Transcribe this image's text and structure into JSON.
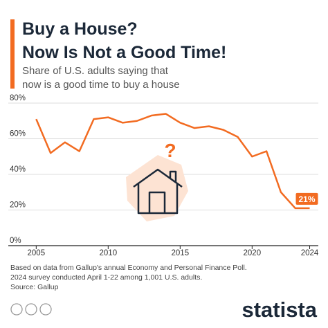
{
  "chart_data": {
    "type": "line",
    "title": [
      "Buy a House?",
      "Now Is Not a Good Time!"
    ],
    "subtitle": [
      "Share of U.S. adults saying that",
      "now is a good time to buy a house"
    ],
    "x": [
      2005,
      2006,
      2007,
      2008,
      2009,
      2010,
      2011,
      2012,
      2013,
      2014,
      2015,
      2016,
      2017,
      2018,
      2019,
      2020,
      2021,
      2022,
      2023,
      2024
    ],
    "series": [
      {
        "color": "#f26b21",
        "values": [
          71,
          52,
          58,
          53,
          71,
          72,
          69,
          70,
          73,
          74,
          69,
          66,
          67,
          65,
          61,
          50,
          53,
          30,
          21,
          21
        ],
        "value_labels": [
          null,
          null,
          null,
          null,
          null,
          null,
          null,
          null,
          null,
          null,
          null,
          null,
          null,
          null,
          null,
          null,
          null,
          null,
          null,
          "21%"
        ]
      }
    ],
    "xlim": [
      2004.6,
      2024.6
    ],
    "xticks": [
      2005,
      2010,
      2015,
      2020,
      2024
    ],
    "ylim": [
      0,
      80
    ],
    "yticks": [
      {
        "value": 0,
        "label": "0%"
      },
      {
        "value": 20,
        "label": "20%"
      },
      {
        "value": 40,
        "label": "40%"
      },
      {
        "value": 60,
        "label": "60%"
      },
      {
        "value": 80,
        "label": "80%"
      }
    ],
    "grid": true,
    "notes": [
      "Based on data from Gallup's annual Economy and Personal Finance Poll.",
      "2024 survey conducted April 1-22 among 1,001 U.S. adults."
    ],
    "source": "Source: Gallup",
    "brand": "statista"
  }
}
